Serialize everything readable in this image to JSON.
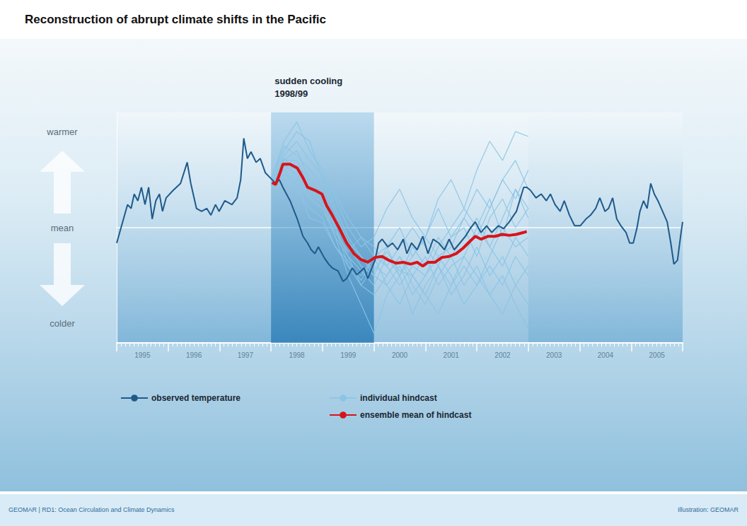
{
  "chart_data": {
    "type": "line",
    "title": "Reconstruction of abrupt climate shifts in the Pacific",
    "xlim": [
      1995,
      2006
    ],
    "xticks": [
      {
        "value": 1995.5,
        "label": "1995"
      },
      {
        "value": 1996.5,
        "label": "1996"
      },
      {
        "value": 1997.5,
        "label": "1997"
      },
      {
        "value": 1998.5,
        "label": "1998"
      },
      {
        "value": 1999.5,
        "label": "1999"
      },
      {
        "value": 2000.5,
        "label": "2000"
      },
      {
        "value": 2001.5,
        "label": "2001"
      },
      {
        "value": 2002.5,
        "label": "2002"
      },
      {
        "value": 2003.5,
        "label": "2003"
      },
      {
        "value": 2004.5,
        "label": "2004"
      },
      {
        "value": 2005.5,
        "label": "2005"
      }
    ],
    "ylim": [
      -1.2,
      1.2
    ],
    "yticks": [
      {
        "value": -1,
        "label": "colder"
      },
      {
        "value": 0,
        "label": "mean"
      },
      {
        "value": 1,
        "label": "warmer"
      }
    ],
    "grid": false,
    "legend": "bottom",
    "annotations": [
      {
        "text": "sudden cooling\n1998/99",
        "x_range": [
          1998,
          2000
        ]
      }
    ],
    "series": [
      {
        "name": "observed temperature",
        "color": "#1f5a8a",
        "x": [
          1995.0,
          1995.21,
          1995.28,
          1995.34,
          1995.41,
          1995.48,
          1995.55,
          1995.62,
          1995.69,
          1995.76,
          1995.83,
          1995.89,
          1995.96,
          1996.1,
          1996.24,
          1996.37,
          1996.44,
          1996.55,
          1996.65,
          1996.75,
          1996.83,
          1996.92,
          1996.99,
          1997.1,
          1997.24,
          1997.34,
          1997.41,
          1997.47,
          1997.54,
          1997.61,
          1997.71,
          1997.79,
          1997.89,
          1998.02,
          1998.09,
          1998.16,
          1998.23,
          1998.37,
          1998.51,
          1998.62,
          1998.71,
          1998.78,
          1998.85,
          1998.92,
          1999.03,
          1999.12,
          1999.19,
          1999.3,
          1999.4,
          1999.47,
          1999.58,
          1999.67,
          1999.81,
          1999.88,
          2000.02,
          2000.09,
          2000.16,
          2000.27,
          2000.36,
          2000.46,
          2000.57,
          2000.64,
          2000.73,
          2000.84,
          2000.95,
          2001.05,
          2001.15,
          2001.26,
          2001.37,
          2001.46,
          2001.56,
          2001.67,
          2001.78,
          2001.87,
          2001.97,
          2002.08,
          2002.19,
          2002.29,
          2002.42,
          2002.52,
          2002.63,
          2002.77,
          2002.91,
          2002.97,
          2003.04,
          2003.15,
          2003.25,
          2003.35,
          2003.43,
          2003.52,
          2003.62,
          2003.7,
          2003.8,
          2003.9,
          2004.01,
          2004.12,
          2004.21,
          2004.31,
          2004.39,
          2004.49,
          2004.56,
          2004.64,
          2004.72,
          2004.8,
          2004.9,
          2004.97,
          2005.04,
          2005.11,
          2005.17,
          2005.24,
          2005.31,
          2005.38,
          2005.45,
          2005.52,
          2005.61,
          2005.7,
          2005.77,
          2005.83,
          2005.9,
          2005.97,
          2006.0
        ],
        "values": [
          -0.16,
          0.24,
          0.2,
          0.35,
          0.28,
          0.42,
          0.24,
          0.42,
          0.09,
          0.28,
          0.35,
          0.17,
          0.31,
          0.39,
          0.46,
          0.68,
          0.46,
          0.2,
          0.17,
          0.2,
          0.13,
          0.24,
          0.17,
          0.28,
          0.24,
          0.31,
          0.5,
          0.93,
          0.72,
          0.79,
          0.68,
          0.72,
          0.57,
          0.5,
          0.46,
          0.5,
          0.42,
          0.28,
          0.09,
          -0.09,
          -0.16,
          -0.23,
          -0.27,
          -0.2,
          -0.31,
          -0.38,
          -0.42,
          -0.45,
          -0.56,
          -0.53,
          -0.42,
          -0.49,
          -0.42,
          -0.53,
          -0.34,
          -0.16,
          -0.12,
          -0.2,
          -0.16,
          -0.23,
          -0.12,
          -0.27,
          -0.16,
          -0.23,
          -0.09,
          -0.27,
          -0.12,
          -0.16,
          -0.23,
          -0.12,
          -0.23,
          -0.16,
          -0.09,
          -0.01,
          0.06,
          -0.05,
          0.02,
          -0.05,
          0.02,
          -0.01,
          0.06,
          0.17,
          0.42,
          0.42,
          0.39,
          0.31,
          0.35,
          0.28,
          0.35,
          0.24,
          0.17,
          0.28,
          0.13,
          0.02,
          0.02,
          0.09,
          0.13,
          0.2,
          0.31,
          0.17,
          0.2,
          0.31,
          0.09,
          0.02,
          -0.05,
          -0.16,
          -0.16,
          -0.01,
          0.17,
          0.28,
          0.2,
          0.46,
          0.35,
          0.28,
          0.17,
          0.06,
          -0.16,
          -0.38,
          -0.34,
          -0.05,
          0.06
        ]
      },
      {
        "name": "individual hindcast",
        "color": "#8cc4e6",
        "x": [
          1998,
          1998.25,
          1998.5,
          1998.75,
          1999,
          1999.25,
          1999.5,
          1999.75,
          2000,
          2000.25,
          2000.5,
          2000.75,
          2001,
          2001.25,
          2001.5,
          2001.75,
          2002,
          2002.25,
          2002.5,
          2002.75,
          2003
        ],
        "members": [
          [
            0.5,
            0.9,
            1.1,
            0.8,
            0.6,
            0.3,
            0.0,
            -0.2,
            -0.1,
            0.2,
            0.4,
            0.1,
            -0.1,
            0.3,
            0.5,
            0.2,
            0.6,
            0.9,
            0.7,
            1.0,
            0.95
          ],
          [
            0.45,
            0.7,
            0.8,
            0.5,
            0.3,
            -0.1,
            -0.5,
            -0.8,
            -1.1,
            -0.7,
            -0.5,
            -0.9,
            -0.6,
            -0.4,
            -0.7,
            -0.5,
            -0.2,
            -0.5,
            -0.3,
            -0.6,
            -0.4
          ],
          [
            0.5,
            0.6,
            0.4,
            0.2,
            0.1,
            -0.2,
            -0.4,
            -0.5,
            -0.3,
            -0.6,
            -0.8,
            -0.5,
            -0.7,
            -0.9,
            -0.6,
            -0.4,
            -0.6,
            -0.3,
            0.0,
            -0.2,
            -0.1
          ],
          [
            0.48,
            0.75,
            0.9,
            0.7,
            0.55,
            0.2,
            -0.1,
            -0.3,
            -0.5,
            -0.2,
            0.0,
            -0.3,
            -0.1,
            0.2,
            -0.1,
            0.1,
            0.4,
            0.2,
            0.5,
            0.3,
            0.6
          ],
          [
            0.44,
            0.55,
            0.5,
            0.3,
            0.2,
            -0.1,
            -0.3,
            -0.6,
            -0.4,
            -0.5,
            -0.3,
            -0.6,
            -0.8,
            -0.5,
            -0.3,
            -0.6,
            -0.4,
            -0.7,
            -0.5,
            -0.8,
            -1.05
          ],
          [
            0.5,
            0.8,
            1.0,
            0.9,
            0.5,
            0.35,
            0.1,
            -0.1,
            -0.3,
            -0.4,
            -0.2,
            0.0,
            -0.2,
            -0.4,
            -0.1,
            0.0,
            -0.3,
            0.1,
            0.3,
            0.0,
            0.2
          ],
          [
            0.46,
            0.6,
            0.65,
            0.35,
            0.4,
            0.0,
            -0.3,
            -0.45,
            -0.6,
            -0.3,
            -0.5,
            -0.2,
            -0.4,
            -0.1,
            -0.3,
            -0.1,
            0.1,
            -0.2,
            -0.4,
            -0.1,
            -0.3
          ],
          [
            0.47,
            0.65,
            0.55,
            0.3,
            0.2,
            -0.05,
            -0.25,
            -0.1,
            -0.2,
            -0.4,
            -0.6,
            -0.4,
            -0.5,
            -0.2,
            0.0,
            0.2,
            0.0,
            0.3,
            -0.1,
            0.4,
            0.1
          ],
          [
            0.49,
            0.7,
            0.7,
            0.45,
            0.3,
            0.1,
            -0.2,
            -0.4,
            -0.5,
            -0.6,
            -0.4,
            -0.7,
            -0.5,
            -0.3,
            -0.5,
            -0.8,
            -0.6,
            -0.4,
            -0.6,
            -0.3,
            -0.5
          ],
          [
            0.45,
            0.5,
            0.45,
            0.1,
            0.05,
            -0.2,
            -0.35,
            -0.55,
            -0.3,
            -0.2,
            -0.5,
            -0.3,
            -0.1,
            -0.3,
            -0.2,
            0.1,
            -0.1,
            0.2,
            0.5,
            0.7,
            0.4
          ],
          [
            0.5,
            0.85,
            0.75,
            0.6,
            0.45,
            0.15,
            -0.15,
            -0.3,
            -0.45,
            -0.25,
            -0.45,
            -0.5,
            -0.3,
            -0.6,
            -0.4,
            -0.3,
            0.0,
            -0.2,
            0.1,
            0.4,
            0.2
          ],
          [
            0.46,
            0.72,
            0.6,
            0.4,
            0.25,
            0.0,
            -0.4,
            -0.6,
            -0.7,
            -0.5,
            -0.3,
            -0.5,
            -0.7,
            -0.4,
            -0.6,
            -0.3,
            -0.5,
            -0.7,
            -0.9,
            -0.6,
            -0.8
          ]
        ]
      },
      {
        "name": "ensemble mean of hindcast",
        "color": "#d7141a",
        "x": [
          1998.02,
          1998.09,
          1998.16,
          1998.23,
          1998.37,
          1998.51,
          1998.62,
          1998.71,
          1998.85,
          1998.99,
          1999.08,
          1999.19,
          1999.33,
          1999.47,
          1999.61,
          1999.74,
          1999.88,
          2000.02,
          2000.16,
          2000.29,
          2000.43,
          2000.57,
          2000.71,
          2000.84,
          2000.95,
          2001.05,
          2001.19,
          2001.32,
          2001.46,
          2001.6,
          2001.74,
          2001.87,
          2001.97,
          2002.08,
          2002.22,
          2002.36,
          2002.49,
          2002.63,
          2002.77,
          2002.91,
          2002.97
        ],
        "values": [
          0.47,
          0.45,
          0.55,
          0.66,
          0.66,
          0.62,
          0.52,
          0.42,
          0.39,
          0.35,
          0.23,
          0.13,
          -0.01,
          -0.16,
          -0.27,
          -0.33,
          -0.36,
          -0.31,
          -0.3,
          -0.34,
          -0.37,
          -0.36,
          -0.38,
          -0.36,
          -0.4,
          -0.36,
          -0.36,
          -0.31,
          -0.3,
          -0.27,
          -0.21,
          -0.14,
          -0.09,
          -0.12,
          -0.09,
          -0.09,
          -0.07,
          -0.08,
          -0.07,
          -0.05,
          -0.04
        ]
      }
    ]
  },
  "footer": {
    "left": "GEOMAR | RD1: Ocean Circulation and Climate Dynamics",
    "right": "Illustration: GEOMAR"
  }
}
